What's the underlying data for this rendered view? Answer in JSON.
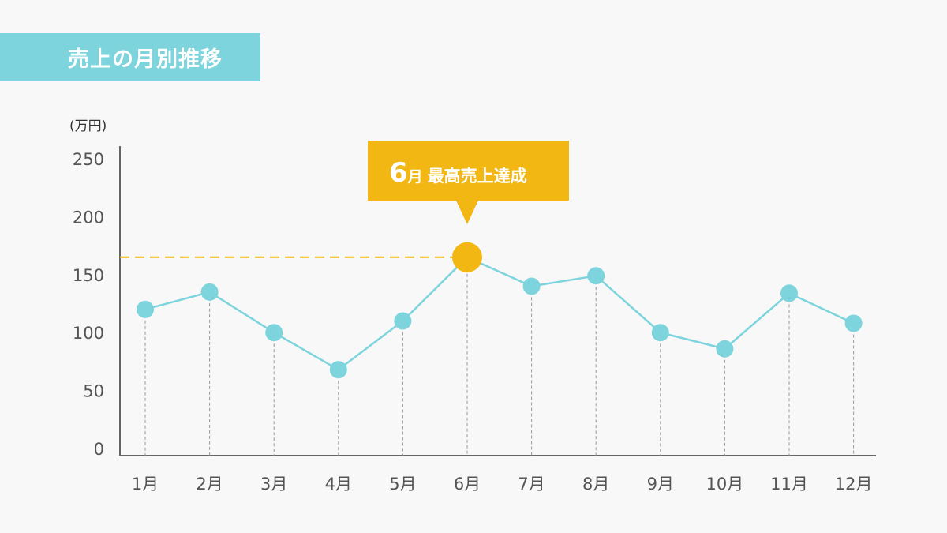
{
  "title": "売上の月別推移",
  "colors": {
    "title_bg": "#7dd4dc",
    "line": "#7dd4dc",
    "highlight": "#f2b713",
    "axis": "#666666",
    "guide": "#999999",
    "background": "#f8f8f8"
  },
  "chart_data": {
    "type": "line",
    "title": "売上の月別推移",
    "xlabel": "",
    "ylabel": "(万円)",
    "ylim": [
      0,
      250
    ],
    "yticks": [
      0,
      50,
      100,
      150,
      200,
      250
    ],
    "grid": false,
    "categories": [
      "1月",
      "2月",
      "3月",
      "4月",
      "5月",
      "6月",
      "7月",
      "8月",
      "9月",
      "10月",
      "11月",
      "12月"
    ],
    "values": [
      120,
      135,
      100,
      68,
      110,
      165,
      140,
      149,
      100,
      86,
      134,
      108
    ],
    "highlight": {
      "index": 5,
      "label_number": "6",
      "label_unit": "月",
      "label_text": "最高売上達成"
    }
  }
}
